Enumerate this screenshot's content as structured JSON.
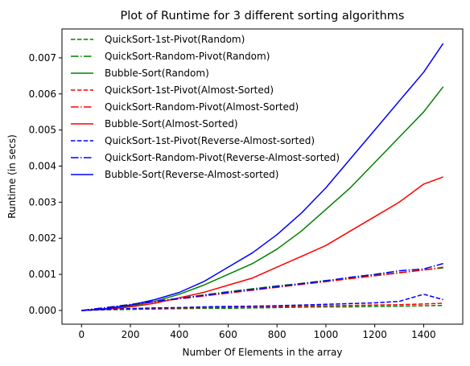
{
  "chart_data": {
    "type": "line",
    "title": "Plot of Runtime for 3 different sorting algorithms",
    "xlabel": "Number Of Elements in the array",
    "ylabel": "Runtime (in secs)",
    "xlim": [
      -80,
      1560
    ],
    "ylim": [
      -0.00038,
      0.0078
    ],
    "xticks": [
      0,
      200,
      400,
      600,
      800,
      1000,
      1200,
      1400
    ],
    "xtick_labels": [
      "0",
      "200",
      "400",
      "600",
      "800",
      "1000",
      "1200",
      "1400"
    ],
    "yticks": [
      0.0,
      0.001,
      0.002,
      0.003,
      0.004,
      0.005,
      0.006,
      0.007
    ],
    "ytick_labels": [
      "0.000",
      "0.001",
      "0.002",
      "0.003",
      "0.004",
      "0.005",
      "0.006",
      "0.007"
    ],
    "grid": false,
    "legend_position": "top-left",
    "x": [
      0,
      100,
      200,
      300,
      400,
      500,
      600,
      700,
      800,
      900,
      1000,
      1100,
      1200,
      1300,
      1400,
      1480
    ],
    "series": [
      {
        "name": "QuickSort-1st-Pivot(Random)",
        "color": "#008000",
        "dash": "dashed",
        "values": [
          0,
          2e-05,
          3e-05,
          4e-05,
          5e-05,
          6e-05,
          6e-05,
          7e-05,
          8e-05,
          9e-05,
          0.0001,
          0.0001,
          0.00011,
          0.00012,
          0.00013,
          0.00014
        ]
      },
      {
        "name": "QuickSort-Random-Pivot(Random)",
        "color": "#008000",
        "dash": "dashdot",
        "values": [
          0,
          8e-05,
          0.00017,
          0.00025,
          0.00034,
          0.00043,
          0.00052,
          0.0006,
          0.00068,
          0.00075,
          0.00083,
          0.0009,
          0.00098,
          0.00105,
          0.00112,
          0.00118
        ]
      },
      {
        "name": "Bubble-Sort(Random)",
        "color": "#008000",
        "dash": "solid",
        "values": [
          0,
          4e-05,
          0.00012,
          0.00025,
          0.00045,
          0.0007,
          0.001,
          0.0013,
          0.0017,
          0.0022,
          0.0028,
          0.0034,
          0.0041,
          0.0048,
          0.0055,
          0.0062
        ]
      },
      {
        "name": "QuickSort-1st-Pivot(Almost-Sorted)",
        "color": "#ff0000",
        "dash": "dashed",
        "values": [
          0,
          3e-05,
          5e-05,
          6e-05,
          7e-05,
          8e-05,
          9e-05,
          0.0001,
          0.00011,
          0.00012,
          0.00013,
          0.00014,
          0.00015,
          0.00016,
          0.00018,
          0.0002
        ]
      },
      {
        "name": "QuickSort-Random-Pivot(Almost-Sorted)",
        "color": "#ff0000",
        "dash": "dashdot",
        "values": [
          0,
          8e-05,
          0.00016,
          0.00024,
          0.00032,
          0.0004,
          0.00048,
          0.00056,
          0.00064,
          0.00072,
          0.0008,
          0.00088,
          0.00096,
          0.00104,
          0.00112,
          0.0012
        ]
      },
      {
        "name": "Bubble-Sort(Almost-Sorted)",
        "color": "#ff0000",
        "dash": "solid",
        "values": [
          0,
          3e-05,
          0.0001,
          0.0002,
          0.00035,
          0.0005,
          0.0007,
          0.0009,
          0.0012,
          0.0015,
          0.0018,
          0.0022,
          0.0026,
          0.003,
          0.0035,
          0.0037
        ]
      },
      {
        "name": "QuickSort-1st-Pivot(Reverse-Almost-sorted)",
        "color": "#0000ff",
        "dash": "dashed",
        "values": [
          0,
          3e-05,
          5e-05,
          7e-05,
          8e-05,
          0.0001,
          0.00011,
          0.00012,
          0.00013,
          0.00015,
          0.00017,
          0.00019,
          0.00021,
          0.00025,
          0.00045,
          0.0003
        ]
      },
      {
        "name": "QuickSort-Random-Pivot(Reverse-Almost-sorted)",
        "color": "#0000ff",
        "dash": "dashdot",
        "values": [
          0,
          8e-05,
          0.00016,
          0.00025,
          0.00033,
          0.00042,
          0.0005,
          0.00058,
          0.00066,
          0.00074,
          0.00082,
          0.00092,
          0.001,
          0.0011,
          0.00115,
          0.0013
        ]
      },
      {
        "name": "Bubble-Sort(Reverse-Almost-sorted)",
        "color": "#0000ff",
        "dash": "solid",
        "values": [
          0,
          5e-05,
          0.00015,
          0.0003,
          0.0005,
          0.0008,
          0.0012,
          0.0016,
          0.0021,
          0.0027,
          0.0034,
          0.0042,
          0.005,
          0.0058,
          0.0066,
          0.0074
        ]
      }
    ]
  }
}
